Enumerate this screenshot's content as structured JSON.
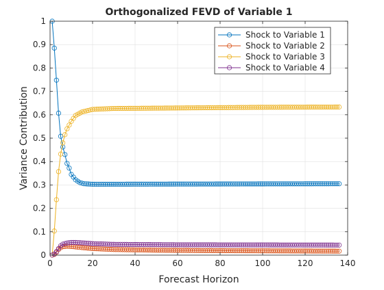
{
  "chart_data": {
    "type": "line",
    "title": "Orthogonalized FEVD of Variable 1",
    "xlabel": "Forecast Horizon",
    "ylabel": "Variance Contribution",
    "xlim": [
      0,
      140
    ],
    "ylim": [
      0,
      1
    ],
    "xticks": [
      0,
      20,
      40,
      60,
      80,
      100,
      120,
      140
    ],
    "yticks": [
      0,
      0.1,
      0.2,
      0.3,
      0.4,
      0.5,
      0.6,
      0.7,
      0.8,
      0.9,
      1
    ],
    "grid": true,
    "legend_position": "top-right",
    "marker": "circle",
    "x_range": [
      1,
      136
    ],
    "series": [
      {
        "name": "Shock to Variable 1",
        "color": "#0072BD",
        "keyframes": [
          [
            1,
            1.0
          ],
          [
            2,
            0.885
          ],
          [
            3,
            0.748
          ],
          [
            4,
            0.607
          ],
          [
            5,
            0.508
          ],
          [
            6,
            0.462
          ],
          [
            7,
            0.43
          ],
          [
            8,
            0.392
          ],
          [
            9,
            0.372
          ],
          [
            10,
            0.345
          ],
          [
            12,
            0.322
          ],
          [
            14,
            0.31
          ],
          [
            16,
            0.305
          ],
          [
            20,
            0.303
          ],
          [
            136,
            0.305
          ]
        ]
      },
      {
        "name": "Shock to Variable 2",
        "color": "#D95319",
        "keyframes": [
          [
            1,
            0.0
          ],
          [
            2,
            0.003
          ],
          [
            3,
            0.012
          ],
          [
            4,
            0.024
          ],
          [
            5,
            0.032
          ],
          [
            6,
            0.036
          ],
          [
            8,
            0.038
          ],
          [
            10,
            0.037
          ],
          [
            14,
            0.033
          ],
          [
            20,
            0.028
          ],
          [
            30,
            0.024
          ],
          [
            50,
            0.021
          ],
          [
            80,
            0.019
          ],
          [
            136,
            0.017
          ]
        ]
      },
      {
        "name": "Shock to Variable 3",
        "color": "#EDB120",
        "keyframes": [
          [
            1,
            0.0
          ],
          [
            2,
            0.103
          ],
          [
            3,
            0.237
          ],
          [
            4,
            0.357
          ],
          [
            5,
            0.432
          ],
          [
            6,
            0.48
          ],
          [
            7,
            0.515
          ],
          [
            8,
            0.54
          ],
          [
            10,
            0.572
          ],
          [
            12,
            0.597
          ],
          [
            15,
            0.612
          ],
          [
            20,
            0.623
          ],
          [
            30,
            0.627
          ],
          [
            60,
            0.629
          ],
          [
            100,
            0.632
          ],
          [
            136,
            0.633
          ]
        ]
      },
      {
        "name": "Shock to Variable 4",
        "color": "#7E2F8E",
        "keyframes": [
          [
            1,
            0.0
          ],
          [
            2,
            0.005
          ],
          [
            3,
            0.015
          ],
          [
            4,
            0.028
          ],
          [
            5,
            0.04
          ],
          [
            6,
            0.047
          ],
          [
            8,
            0.052
          ],
          [
            10,
            0.054
          ],
          [
            12,
            0.054
          ],
          [
            16,
            0.052
          ],
          [
            20,
            0.049
          ],
          [
            30,
            0.046
          ],
          [
            60,
            0.044
          ],
          [
            136,
            0.043
          ]
        ]
      }
    ]
  }
}
